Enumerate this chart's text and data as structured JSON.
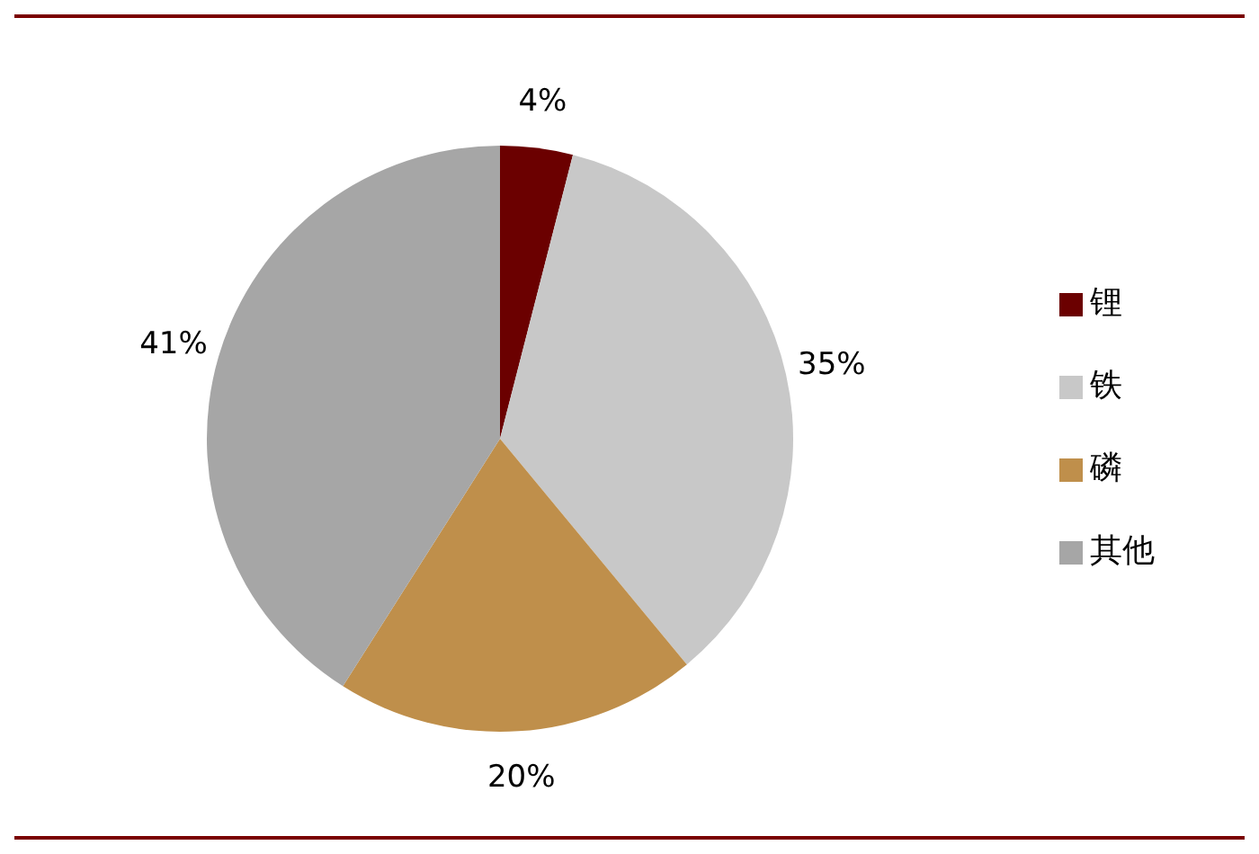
{
  "chart_data": {
    "type": "pie",
    "categories": [
      "锂",
      "铁",
      "磷",
      "其他"
    ],
    "values": [
      4,
      35,
      20,
      41
    ],
    "colors": [
      "#6b0000",
      "#c8c8c8",
      "#bf8f4b",
      "#a6a6a6"
    ],
    "value_labels": [
      "4%",
      "35%",
      "20%",
      "41%"
    ],
    "legend": "right"
  }
}
